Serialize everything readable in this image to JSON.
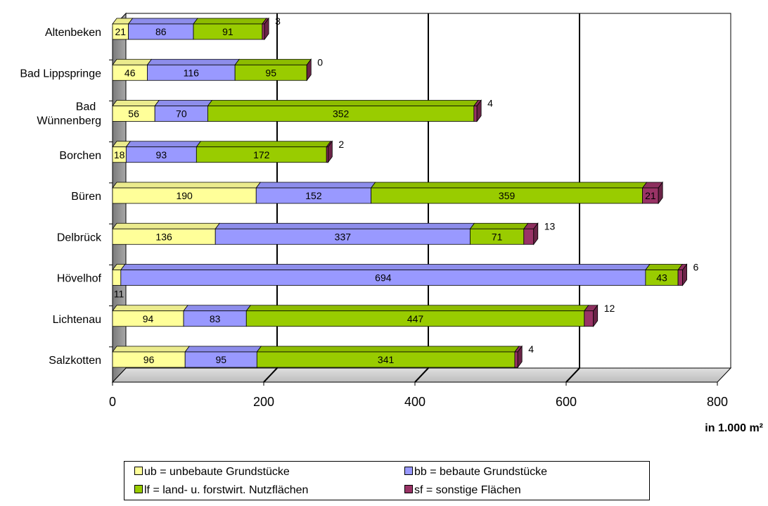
{
  "chart_data": {
    "type": "bar",
    "orientation": "horizontal",
    "stacked": true,
    "categories": [
      "Altenbeken",
      "Bad Lippspringe",
      "Bad\nWünnenberg",
      "Borchen",
      "Büren",
      "Delbrück",
      "Hövelhof",
      "Lichtenau",
      "Salzkotten"
    ],
    "series": [
      {
        "name": "ub = unbebaute Grundstücke",
        "color": "#ffff99",
        "values": [
          21,
          46,
          56,
          18,
          190,
          136,
          11,
          94,
          96
        ]
      },
      {
        "name": "bb = bebaute Grundstücke",
        "color": "#9999ff",
        "values": [
          86,
          116,
          70,
          93,
          152,
          337,
          694,
          83,
          95
        ]
      },
      {
        "name": "lf = land- u. forstwirt. Nutzflächen",
        "color": "#99cc00",
        "values": [
          91,
          95,
          352,
          172,
          359,
          71,
          43,
          447,
          341
        ]
      },
      {
        "name": "sf = sonstige Flächen",
        "color": "#993366",
        "values": [
          3,
          0,
          4,
          2,
          21,
          13,
          6,
          12,
          4
        ]
      }
    ],
    "value_labels": {
      "ub": [
        "21",
        "46",
        "56",
        "18",
        "190",
        "136",
        "11",
        "94",
        "96"
      ],
      "bb": [
        "86",
        "116",
        "70",
        "93",
        "152",
        "337",
        "694",
        "83",
        "95"
      ],
      "lf": [
        "91",
        "95",
        "352",
        "172",
        "359",
        "71",
        "43",
        "447",
        "341"
      ],
      "sf": [
        "3",
        "0",
        "4",
        "2",
        "21",
        "13",
        "6",
        "12",
        "4"
      ]
    },
    "xlim": [
      0,
      800
    ],
    "xticks": [
      "0",
      "200",
      "400",
      "600",
      "800"
    ],
    "unit_label": "in 1.000 m²",
    "grid": "vertical",
    "legend_position": "bottom",
    "style": "3d"
  }
}
